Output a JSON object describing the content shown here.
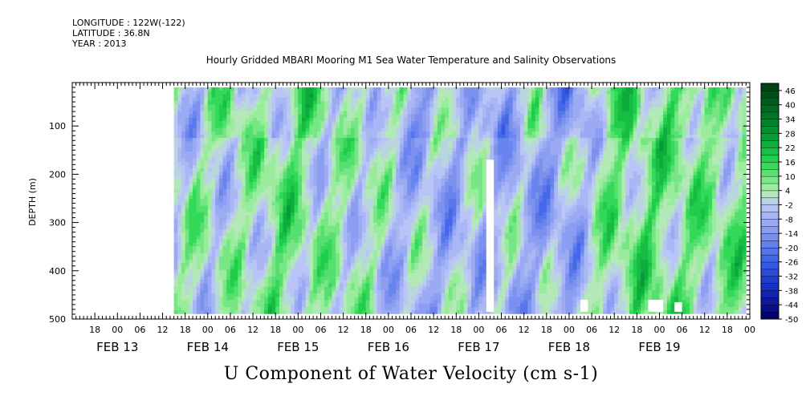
{
  "header": {
    "longitude": "LONGITUDE : 122W(-122)",
    "latitude": "LATITUDE : 36.8N",
    "year": "YEAR : 2013"
  },
  "title": "Hourly Gridded MBARI Mooring M1 Sea Water Temperature and Salinity Observations",
  "bottom_title": "U Component of Water Velocity (cm s-1)",
  "chart_data": {
    "type": "heatmap",
    "title": "Hourly Gridded MBARI Mooring M1 Sea Water Temperature and Salinity Observations",
    "xlabel": "",
    "ylabel": "DEPTH (m)",
    "variable": "U Component of Water Velocity (cm s-1)",
    "x_axis": {
      "start": "FEB 12 12:00",
      "end": "FEB 20 00:00",
      "hour_ticks": [
        "18",
        "00",
        "06",
        "12",
        "18",
        "00",
        "06",
        "12",
        "18",
        "00",
        "06",
        "12",
        "18",
        "00",
        "06",
        "12",
        "18",
        "00",
        "06",
        "12",
        "18",
        "00",
        "06",
        "12",
        "18",
        "00",
        "06",
        "12",
        "18",
        "00"
      ],
      "day_labels": [
        "FEB 13",
        "FEB 14",
        "FEB 15",
        "FEB 16",
        "FEB 17",
        "FEB 18",
        "FEB 19"
      ],
      "data_start": "FEB 12 15:00",
      "data_end": "FEB 19 23:00"
    },
    "y_axis": {
      "range": [
        10,
        500
      ],
      "inverted": true,
      "ticks": [
        100,
        200,
        300,
        400,
        500
      ],
      "data_top": 20,
      "data_bottom": 485
    },
    "colorbar": {
      "labels": [
        46,
        40,
        34,
        28,
        22,
        16,
        10,
        4,
        -2,
        -8,
        -14,
        -20,
        -26,
        -32,
        -38,
        -44,
        -50
      ],
      "range": [
        -50,
        49
      ],
      "step": 3
    },
    "missing_segments": [
      {
        "day": "FEB 16",
        "hour_start": 14,
        "hour_end": 16,
        "depth_start": 170,
        "depth_end": 485
      },
      {
        "day": "FEB 17",
        "hour_start": 15,
        "hour_end": 17,
        "depth_start": 460,
        "depth_end": 485
      },
      {
        "day": "FEB 18",
        "hour_start": 9,
        "hour_end": 13,
        "depth_start": 460,
        "depth_end": 485
      },
      {
        "day": "FEB 18",
        "hour_start": 16,
        "hour_end": 18,
        "depth_start": 465,
        "depth_end": 485
      }
    ],
    "value_fields": [
      {
        "day": "FEB 13",
        "pattern": "alternating narrow bands of -8 to +10"
      },
      {
        "day": "FEB 14",
        "pattern": "mostly positive 4 to 22 in the mid column"
      },
      {
        "day": "FEB 15",
        "pattern": "mixed, strong positive near surface"
      },
      {
        "day": "FEB 16",
        "pattern": "negative -8 to -20 mid depth, positive near surface"
      },
      {
        "day": "FEB 17",
        "pattern": "mostly negative -8 to -26"
      },
      {
        "day": "FEB 18",
        "pattern": "positive 10 to 22 bands at mid depth"
      },
      {
        "day": "FEB 19",
        "pattern": "positive 10 to 22 in upper column, negative near surface"
      }
    ]
  }
}
